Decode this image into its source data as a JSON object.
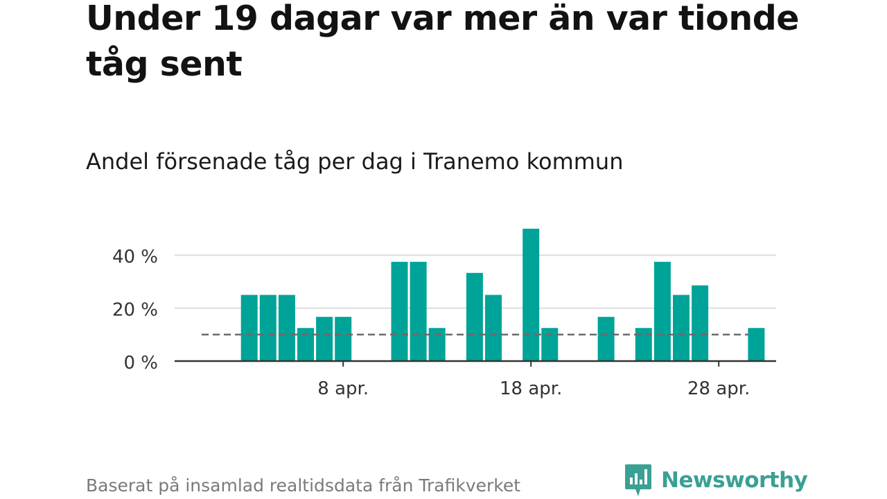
{
  "title": "Under 19 dagar var mer än var tionde tåg sent",
  "subtitle": "Andel försenade tåg per dag i Tranemo kommun",
  "footer": "Baserat på insamlad realtidsdata från Trafikverket",
  "brand": "Newsworthy",
  "colors": {
    "bar": "#00a398",
    "threshold": "#6b6b6b",
    "grid": "#dcdcdc",
    "axis": "#333333",
    "brand": "#3aa094"
  },
  "chart_data": {
    "type": "bar",
    "title": "Andel försenade tåg per dag i Tranemo kommun",
    "xlabel": "",
    "ylabel": "",
    "unit": "%",
    "days": [
      1,
      2,
      3,
      4,
      5,
      6,
      7,
      8,
      9,
      10,
      11,
      12,
      13,
      14,
      15,
      16,
      17,
      18,
      19,
      20,
      21,
      22,
      23,
      24,
      25,
      26,
      27,
      28,
      29,
      30
    ],
    "values": [
      0,
      0,
      25,
      25,
      25,
      12.5,
      16.7,
      16.7,
      0,
      0,
      37.5,
      37.5,
      12.5,
      0,
      33.3,
      25,
      0,
      50,
      12.5,
      0,
      0,
      16.7,
      0,
      12.5,
      37.5,
      25,
      28.6,
      0,
      0,
      12.5
    ],
    "threshold": 10,
    "ylim": [
      0,
      50
    ],
    "yticks": [
      {
        "value": 0,
        "label": "0 %"
      },
      {
        "value": 20,
        "label": "20 %"
      },
      {
        "value": 40,
        "label": "40 %"
      }
    ],
    "xticks": [
      {
        "day": 8,
        "label": "8 apr."
      },
      {
        "day": 18,
        "label": "18 apr."
      },
      {
        "day": 28,
        "label": "28 apr."
      }
    ],
    "grid": true
  }
}
